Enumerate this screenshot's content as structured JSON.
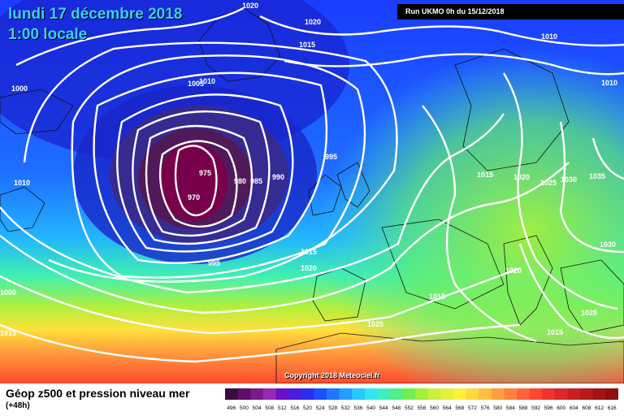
{
  "header": {
    "date": "lundi 17 décembre 2018",
    "time": "1:00 locale",
    "run": "Run UKMO 0h du 15/12/2018"
  },
  "copyright": "Copyright 2018 Meteociel.fr",
  "footer": {
    "title": "Géop z500 et pression niveau mer",
    "subtitle": "(+48h)"
  },
  "map_data": {
    "low_center": "970",
    "isobar_labels": [
      "1020",
      "1020",
      "1015",
      "1010",
      "1010",
      "1005",
      "1000",
      "1010",
      "995",
      "990",
      "985",
      "980",
      "975",
      "970",
      "995",
      "1015",
      "1020",
      "1015",
      "1025",
      "1015",
      "1020",
      "1025",
      "1030",
      "1035",
      "1030",
      "1020",
      "1020",
      "1015",
      "1015",
      "1000",
      "1010",
      "1000"
    ]
  },
  "colorscale": {
    "labels": [
      "496",
      "500",
      "504",
      "508",
      "512",
      "516",
      "520",
      "524",
      "528",
      "532",
      "536",
      "540",
      "544",
      "548",
      "552",
      "556",
      "560",
      "564",
      "568",
      "572",
      "576",
      "580",
      "584",
      "588",
      "592",
      "596",
      "600",
      "604",
      "608",
      "612",
      "616"
    ],
    "colors": [
      "#3c0a3c",
      "#5a1064",
      "#7a1a8a",
      "#9a28b4",
      "#6a10c8",
      "#4a1ee0",
      "#2a2ef0",
      "#1a50ff",
      "#1e78ff",
      "#22a0ff",
      "#28c8ff",
      "#30e6f0",
      "#3ef0c0",
      "#50f08a",
      "#70f050",
      "#a0f03c",
      "#c8f03c",
      "#e8f03c",
      "#fff03c",
      "#ffd83c",
      "#ffbe3c",
      "#ffa03c",
      "#ff823c",
      "#ff643c",
      "#ff4632",
      "#f0322a",
      "#dc2828",
      "#c82020",
      "#b41a1a",
      "#a01414",
      "#8c1010"
    ]
  }
}
